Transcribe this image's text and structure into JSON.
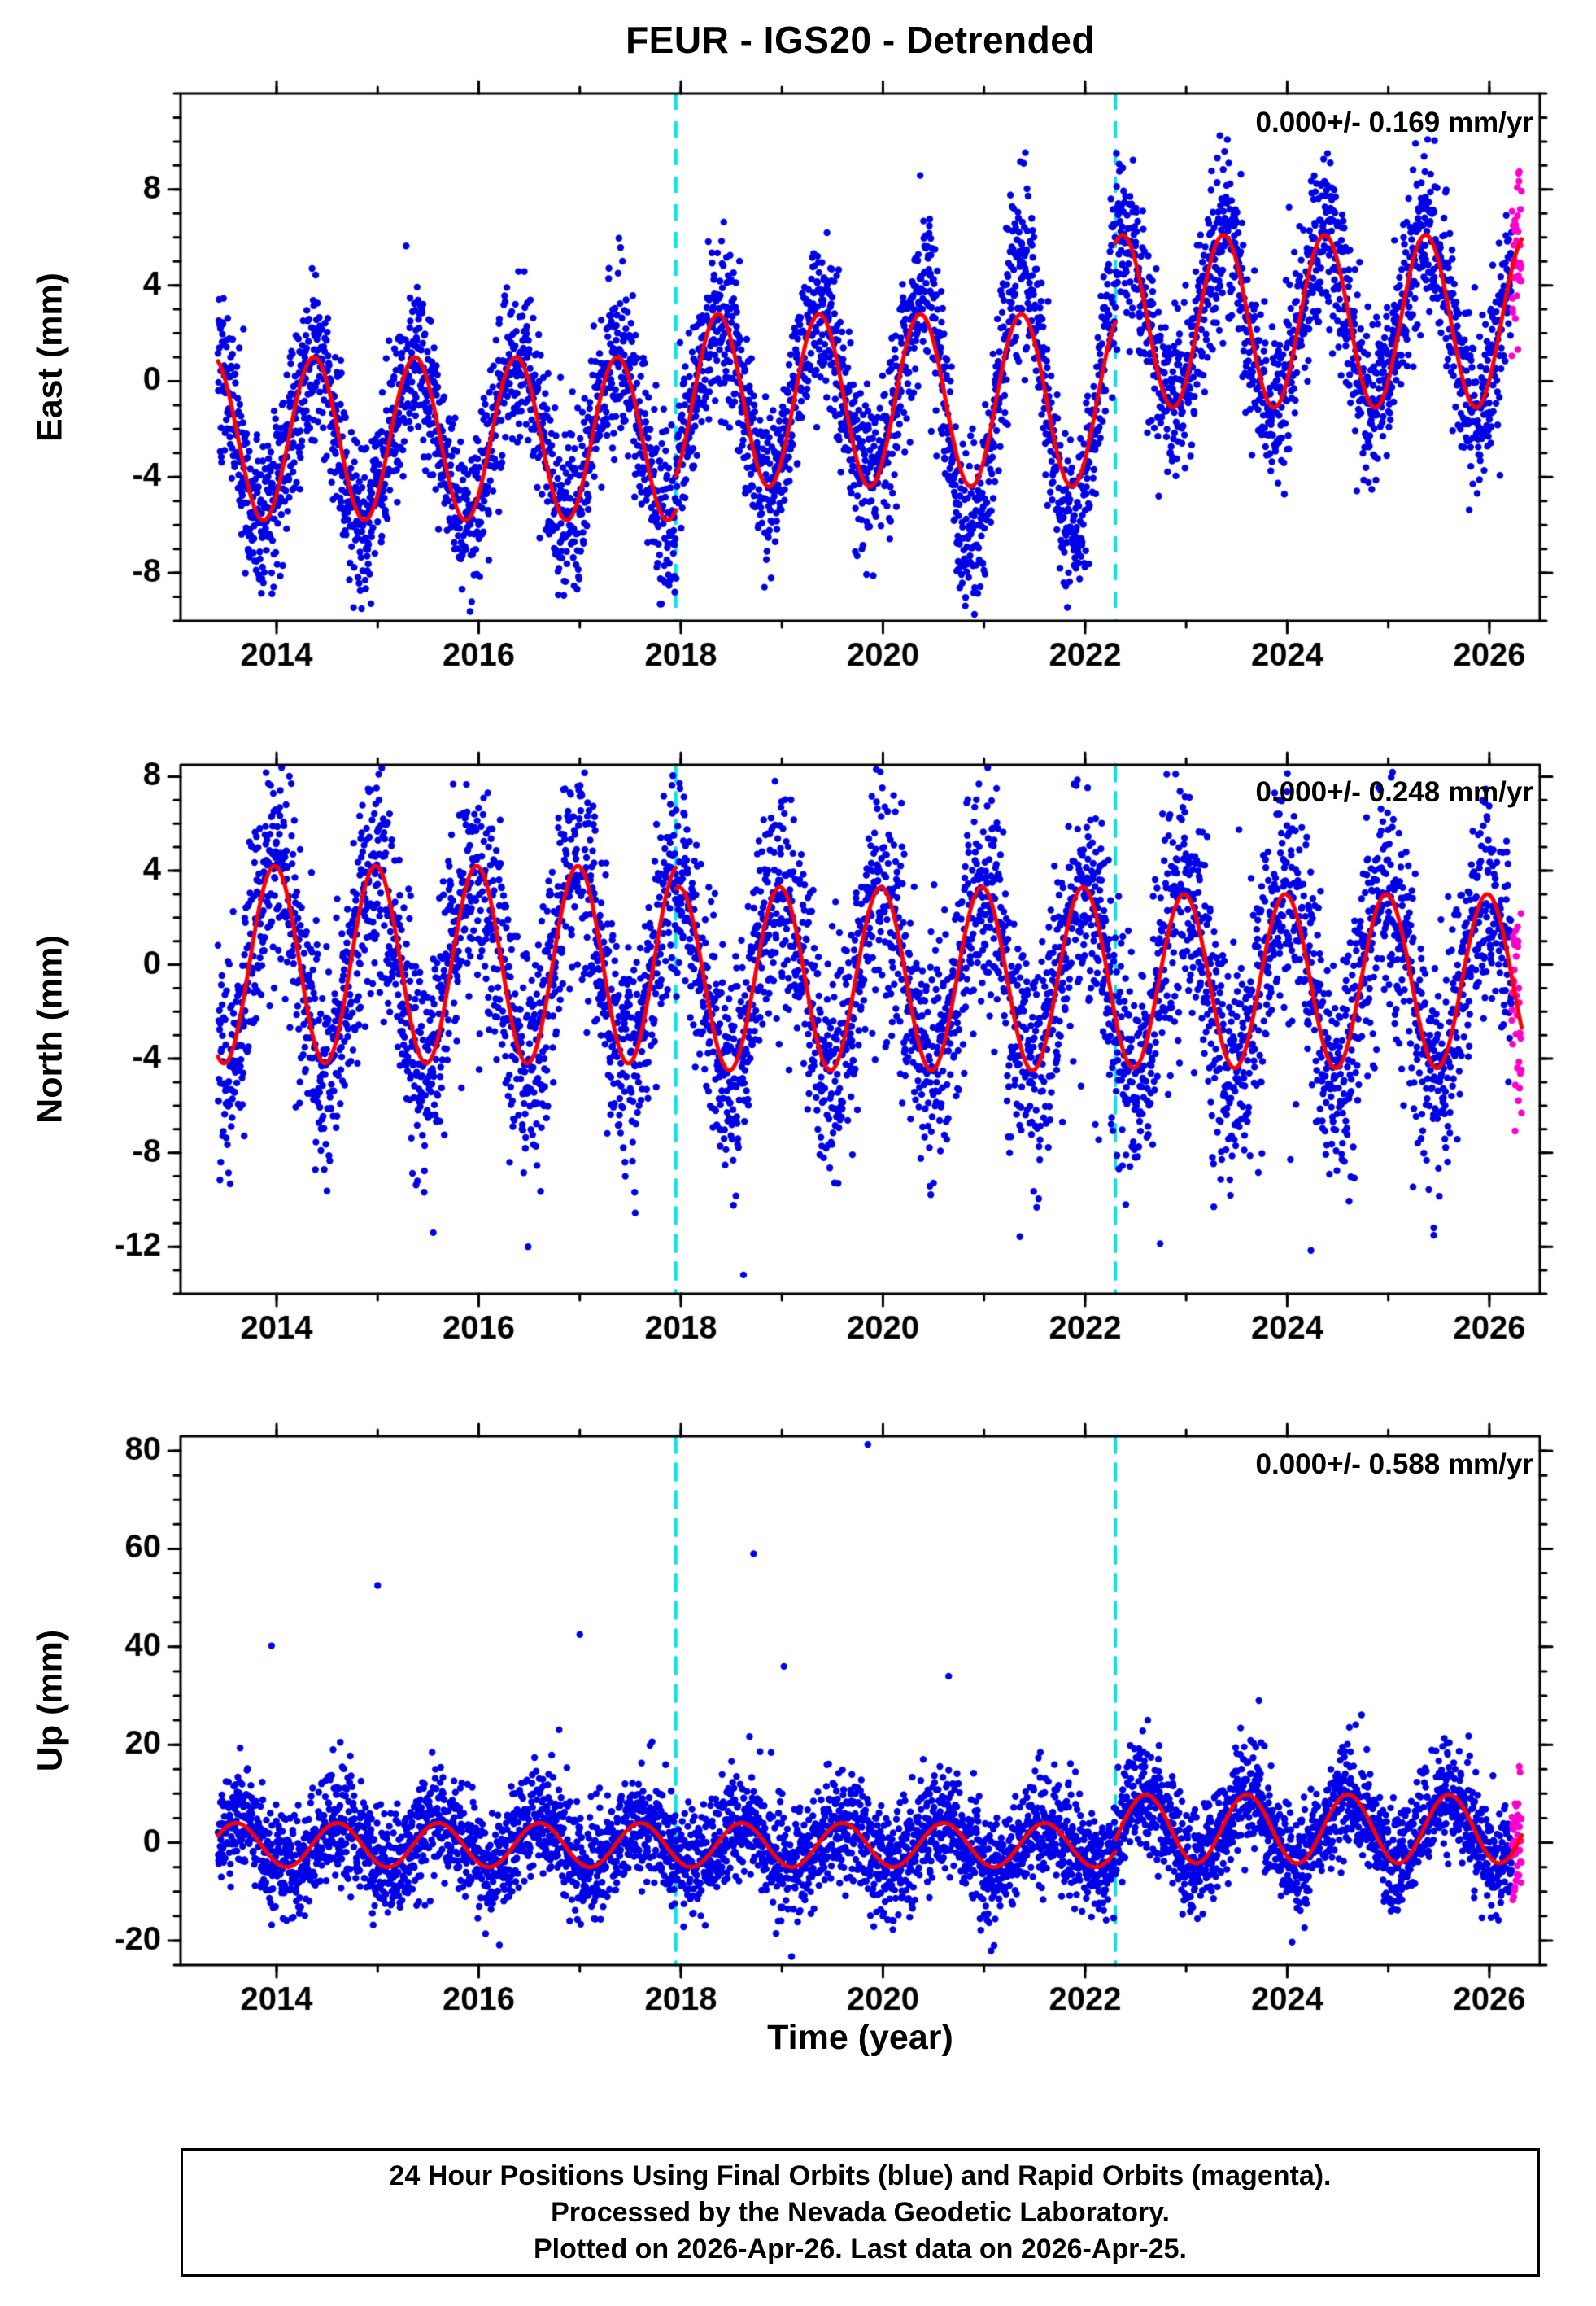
{
  "title": "FEUR - IGS20 - Detrended",
  "xlabel": "Time (year)",
  "caption": {
    "line1": "24 Hour Positions Using Final Orbits (blue) and Rapid Orbits (magenta).",
    "line2": "Processed by the Nevada Geodetic Laboratory.",
    "line3": "Plotted on 2026-Apr-26. Last data on 2026-Apr-25."
  },
  "colors": {
    "final_orbit_points": "#0000e8",
    "rapid_orbit_points": "#ff00cc",
    "model_line": "#ff0000",
    "step_line": "#00e6e6",
    "axis": "#000000",
    "background": "#ffffff"
  },
  "chart_data": [
    {
      "type": "scatter",
      "name": "east",
      "ylabel": "East (mm)",
      "annotation": "0.000+/- 0.169 mm/yr",
      "xlim": [
        2013.05,
        2026.5
      ],
      "ylim": [
        -10,
        12
      ],
      "xticks": [
        2014,
        2016,
        2018,
        2020,
        2022,
        2024,
        2026
      ],
      "yticks": [
        -8,
        -4,
        0,
        4,
        8
      ],
      "x_minor_step": 1,
      "y_minor_step": 1,
      "data_start": 2013.42,
      "data_end": 2026.32,
      "rapid_start": 2026.22,
      "step_times": [
        2017.95,
        2022.3
      ],
      "annual_peak": 0.37,
      "segments": [
        {
          "start": 2013.42,
          "end": 2017.95,
          "mean": -2.4,
          "amp": 3.4
        },
        {
          "start": 2017.95,
          "end": 2022.3,
          "mean": -0.8,
          "amp": 3.6
        },
        {
          "start": 2022.3,
          "end": 2026.32,
          "mean": 2.5,
          "amp": 3.6
        }
      ],
      "noise_sd": 1.75,
      "scatter_amp_boost": [
        {
          "start": 2020.4,
          "end": 2022.3,
          "amp": 2.2
        }
      ],
      "outliers": [],
      "seed": 101
    },
    {
      "type": "scatter",
      "name": "north",
      "ylabel": "North (mm)",
      "annotation": "0.000+/- 0.248 mm/yr",
      "xlim": [
        2013.05,
        2026.5
      ],
      "ylim": [
        -14,
        8.5
      ],
      "xticks": [
        2014,
        2016,
        2018,
        2020,
        2022,
        2024,
        2026
      ],
      "yticks": [
        -12,
        -8,
        -4,
        0,
        4,
        8
      ],
      "x_minor_step": 1,
      "y_minor_step": 1,
      "data_start": 2013.42,
      "data_end": 2026.32,
      "rapid_start": 2026.22,
      "step_times": [
        2017.95,
        2022.3
      ],
      "annual_peak": 0.98,
      "segments": [
        {
          "start": 2013.42,
          "end": 2017.95,
          "mean": 0.0,
          "amp": 4.2
        },
        {
          "start": 2017.95,
          "end": 2022.3,
          "mean": -0.6,
          "amp": 3.9
        },
        {
          "start": 2022.3,
          "end": 2026.32,
          "mean": -0.7,
          "amp": 3.7
        }
      ],
      "noise_sd": 2.4,
      "neg_tail_prob": 0.04,
      "neg_tail_scale": 3.5,
      "outliers": [
        [
          2018.62,
          -13.2
        ],
        [
          2015.55,
          -11.4
        ],
        [
          2025.45,
          -11.2
        ]
      ],
      "seed": 202
    },
    {
      "type": "scatter",
      "name": "up",
      "ylabel": "Up (mm)",
      "annotation": "0.000+/- 0.588 mm/yr",
      "xlim": [
        2013.05,
        2026.5
      ],
      "ylim": [
        -25,
        83
      ],
      "xticks": [
        2014,
        2016,
        2018,
        2020,
        2022,
        2024,
        2026
      ],
      "yticks": [
        -20,
        0,
        20,
        40,
        60,
        80
      ],
      "x_minor_step": 1,
      "y_minor_step": 5,
      "data_start": 2013.42,
      "data_end": 2026.32,
      "rapid_start": 2026.22,
      "step_times": [
        2017.95,
        2022.3
      ],
      "annual_peak": 0.6,
      "segments": [
        {
          "start": 2013.42,
          "end": 2017.95,
          "mean": -0.5,
          "amp": 4.5
        },
        {
          "start": 2017.95,
          "end": 2022.3,
          "mean": -0.5,
          "amp": 4.5
        },
        {
          "start": 2022.3,
          "end": 2026.32,
          "mean": 2.8,
          "amp": 7.0
        }
      ],
      "noise_sd": 5.5,
      "pos_tail_prob": 0.012,
      "pos_tail_scale": 7,
      "outliers": [
        [
          2013.95,
          40.2
        ],
        [
          2015.0,
          52.5
        ],
        [
          2017.0,
          42.5
        ],
        [
          2018.72,
          59
        ],
        [
          2019.02,
          36
        ],
        [
          2019.85,
          81.3
        ],
        [
          2020.65,
          34
        ],
        [
          2021.1,
          -21
        ],
        [
          2022.62,
          25
        ],
        [
          2023.72,
          29
        ]
      ],
      "seed": 303
    }
  ]
}
